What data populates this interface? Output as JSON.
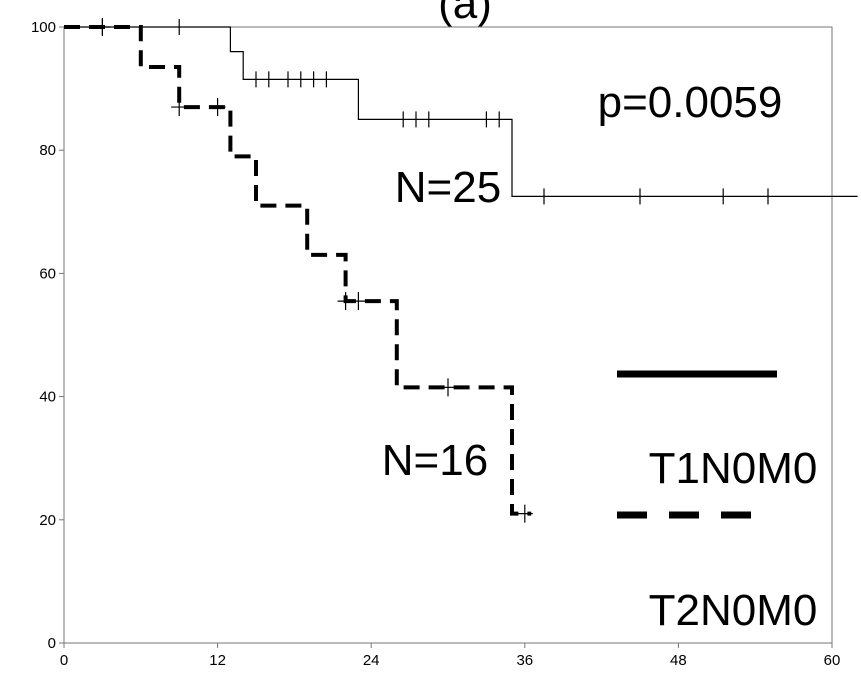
{
  "chart_data": {
    "type": "line",
    "title": "(a)",
    "xlabel": "",
    "ylabel": "",
    "xlim": [
      0,
      60
    ],
    "ylim": [
      0,
      100
    ],
    "xticks": [
      "0",
      "12",
      "24",
      "36",
      "48",
      "60"
    ],
    "yticks": [
      "0",
      "20",
      "40",
      "60",
      "80",
      "100"
    ],
    "grid": false,
    "annotations": {
      "p_value": "p=0.0059",
      "n_solid": "N=25",
      "n_dashed": "N=16"
    },
    "legend": [
      {
        "name": "T1N0M0",
        "style": "solid"
      },
      {
        "name": "T2N0M0",
        "style": "dashed"
      }
    ],
    "series": [
      {
        "name": "T1N0M0",
        "style": "solid",
        "steps": [
          [
            0,
            100
          ],
          [
            13,
            100
          ],
          [
            13,
            96
          ],
          [
            14,
            96
          ],
          [
            14,
            91.5
          ],
          [
            23,
            91.5
          ],
          [
            23,
            85
          ],
          [
            35,
            85
          ],
          [
            35,
            72.5
          ],
          [
            62,
            72.5
          ]
        ],
        "censor_marks": [
          [
            3,
            100
          ],
          [
            9,
            100
          ],
          [
            15,
            91.5
          ],
          [
            16,
            91.5
          ],
          [
            17.5,
            91.5
          ],
          [
            18.5,
            91.5
          ],
          [
            19.5,
            91.5
          ],
          [
            20.5,
            91.5
          ],
          [
            26.5,
            85
          ],
          [
            27.5,
            85
          ],
          [
            28.5,
            85
          ],
          [
            33,
            85
          ],
          [
            34,
            85
          ],
          [
            37.5,
            72.5
          ],
          [
            45,
            72.5
          ],
          [
            51.5,
            72.5
          ],
          [
            55,
            72.5
          ]
        ]
      },
      {
        "name": "T2N0M0",
        "style": "dashed",
        "steps": [
          [
            0,
            100
          ],
          [
            6,
            100
          ],
          [
            6,
            93.5
          ],
          [
            9,
            93.5
          ],
          [
            9,
            87
          ],
          [
            13,
            87
          ],
          [
            13,
            79
          ],
          [
            15,
            79
          ],
          [
            15,
            71
          ],
          [
            19,
            71
          ],
          [
            19,
            63
          ],
          [
            22,
            63
          ],
          [
            22,
            55.5
          ],
          [
            26,
            55.5
          ],
          [
            26,
            41.5
          ],
          [
            35,
            41.5
          ],
          [
            35,
            21
          ],
          [
            36.5,
            21
          ]
        ],
        "censor_marks": [
          [
            3,
            100
          ],
          [
            9,
            87
          ],
          [
            12,
            87
          ],
          [
            22,
            55.5
          ],
          [
            23,
            55.5
          ],
          [
            30,
            41.5
          ],
          [
            36,
            21
          ]
        ]
      }
    ]
  }
}
